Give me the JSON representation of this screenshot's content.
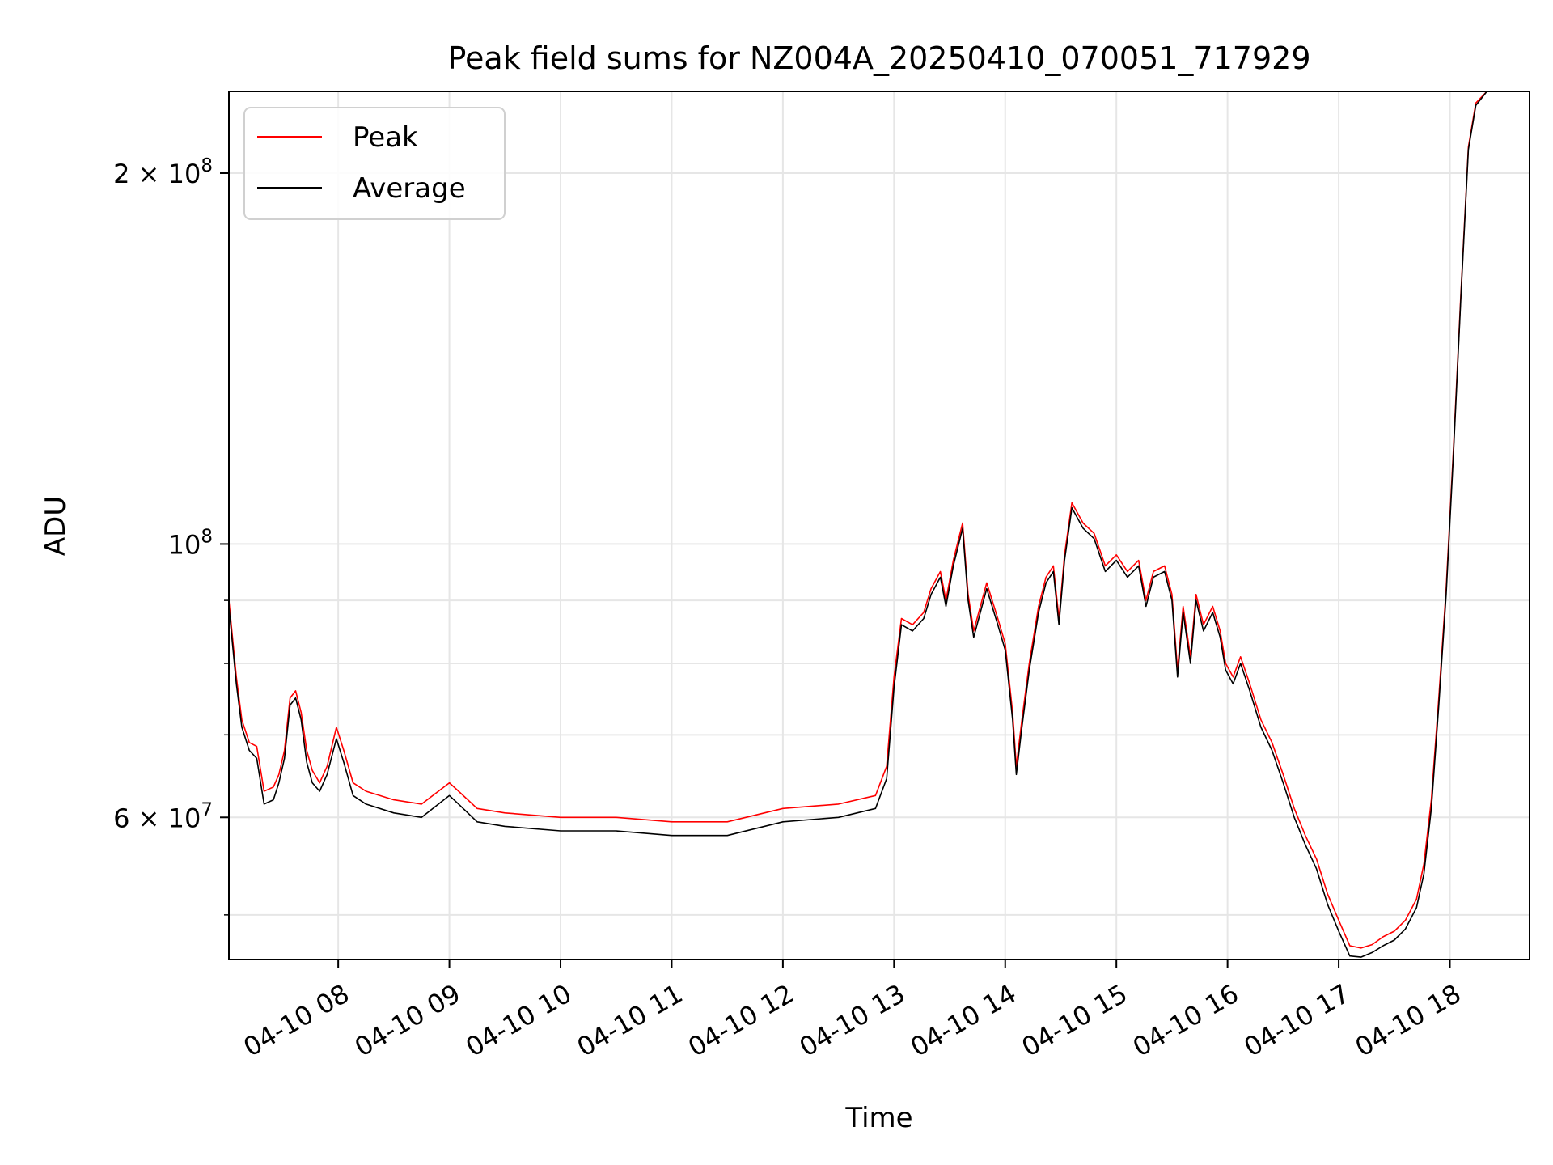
{
  "chart_data": {
    "type": "line",
    "title": "Peak field sums for NZ004A_20250410_070051_717929",
    "xlabel": "Time",
    "ylabel": "ADU",
    "y_scale": "log",
    "xlim": [
      "2025-04-10 07:01",
      "2025-04-10 18:43"
    ],
    "ylim": [
      46000000,
      233000000
    ],
    "grid": true,
    "legend_position": "upper-left",
    "x_ticks": [
      {
        "value": "2025-04-10 08:00",
        "label": "04-10 08"
      },
      {
        "value": "2025-04-10 09:00",
        "label": "04-10 09"
      },
      {
        "value": "2025-04-10 10:00",
        "label": "04-10 10"
      },
      {
        "value": "2025-04-10 11:00",
        "label": "04-10 11"
      },
      {
        "value": "2025-04-10 12:00",
        "label": "04-10 12"
      },
      {
        "value": "2025-04-10 13:00",
        "label": "04-10 13"
      },
      {
        "value": "2025-04-10 14:00",
        "label": "04-10 14"
      },
      {
        "value": "2025-04-10 15:00",
        "label": "04-10 15"
      },
      {
        "value": "2025-04-10 16:00",
        "label": "04-10 16"
      },
      {
        "value": "2025-04-10 17:00",
        "label": "04-10 17"
      },
      {
        "value": "2025-04-10 18:00",
        "label": "04-10 18"
      }
    ],
    "y_ticks": [
      {
        "value": 200000000,
        "label_base": "2 × 10",
        "label_exp": "8"
      },
      {
        "value": 100000000,
        "label_base": "10",
        "label_exp": "8"
      },
      {
        "value": 60000000,
        "label_base": "6 × 10",
        "label_exp": "7"
      }
    ],
    "y_minor_gridlines": [
      50000000,
      70000000,
      80000000,
      90000000
    ],
    "series": [
      {
        "name": "Peak",
        "color": "#ff0000",
        "points": [
          [
            "2025-04-10 07:01",
            90000000
          ],
          [
            "2025-04-10 07:05",
            78000000
          ],
          [
            "2025-04-10 07:08",
            72000000
          ],
          [
            "2025-04-10 07:12",
            69000000
          ],
          [
            "2025-04-10 07:16",
            68500000
          ],
          [
            "2025-04-10 07:20",
            63000000
          ],
          [
            "2025-04-10 07:25",
            63500000
          ],
          [
            "2025-04-10 07:28",
            65000000
          ],
          [
            "2025-04-10 07:31",
            68000000
          ],
          [
            "2025-04-10 07:34",
            75000000
          ],
          [
            "2025-04-10 07:37",
            76000000
          ],
          [
            "2025-04-10 07:40",
            73000000
          ],
          [
            "2025-04-10 07:43",
            68000000
          ],
          [
            "2025-04-10 07:46",
            65500000
          ],
          [
            "2025-04-10 07:50",
            64000000
          ],
          [
            "2025-04-10 07:54",
            66000000
          ],
          [
            "2025-04-10 07:59",
            71000000
          ],
          [
            "2025-04-10 08:03",
            68000000
          ],
          [
            "2025-04-10 08:08",
            64000000
          ],
          [
            "2025-04-10 08:15",
            63000000
          ],
          [
            "2025-04-10 08:30",
            62000000
          ],
          [
            "2025-04-10 08:45",
            61500000
          ],
          [
            "2025-04-10 09:00",
            64000000
          ],
          [
            "2025-04-10 09:05",
            63000000
          ],
          [
            "2025-04-10 09:15",
            61000000
          ],
          [
            "2025-04-10 09:30",
            60500000
          ],
          [
            "2025-04-10 10:00",
            60000000
          ],
          [
            "2025-04-10 10:30",
            60000000
          ],
          [
            "2025-04-10 11:00",
            59500000
          ],
          [
            "2025-04-10 11:30",
            59500000
          ],
          [
            "2025-04-10 12:00",
            61000000
          ],
          [
            "2025-04-10 12:30",
            61500000
          ],
          [
            "2025-04-10 12:50",
            62500000
          ],
          [
            "2025-04-10 12:56",
            66000000
          ],
          [
            "2025-04-10 13:00",
            78000000
          ],
          [
            "2025-04-10 13:04",
            87000000
          ],
          [
            "2025-04-10 13:10",
            86000000
          ],
          [
            "2025-04-10 13:16",
            88000000
          ],
          [
            "2025-04-10 13:20",
            92000000
          ],
          [
            "2025-04-10 13:25",
            95000000
          ],
          [
            "2025-04-10 13:28",
            90000000
          ],
          [
            "2025-04-10 13:32",
            97000000
          ],
          [
            "2025-04-10 13:37",
            104000000
          ],
          [
            "2025-04-10 13:40",
            91000000
          ],
          [
            "2025-04-10 13:43",
            85000000
          ],
          [
            "2025-04-10 13:50",
            93000000
          ],
          [
            "2025-04-10 13:56",
            87000000
          ],
          [
            "2025-04-10 14:00",
            83000000
          ],
          [
            "2025-04-10 14:04",
            73000000
          ],
          [
            "2025-04-10 14:06",
            66000000
          ],
          [
            "2025-04-10 14:09",
            72000000
          ],
          [
            "2025-04-10 14:13",
            80000000
          ],
          [
            "2025-04-10 14:18",
            89000000
          ],
          [
            "2025-04-10 14:22",
            94000000
          ],
          [
            "2025-04-10 14:26",
            96000000
          ],
          [
            "2025-04-10 14:29",
            87000000
          ],
          [
            "2025-04-10 14:32",
            98000000
          ],
          [
            "2025-04-10 14:36",
            108000000
          ],
          [
            "2025-04-10 14:42",
            104000000
          ],
          [
            "2025-04-10 14:48",
            102000000
          ],
          [
            "2025-04-10 14:54",
            96000000
          ],
          [
            "2025-04-10 15:00",
            98000000
          ],
          [
            "2025-04-10 15:06",
            95000000
          ],
          [
            "2025-04-10 15:12",
            97000000
          ],
          [
            "2025-04-10 15:16",
            90000000
          ],
          [
            "2025-04-10 15:20",
            95000000
          ],
          [
            "2025-04-10 15:26",
            96000000
          ],
          [
            "2025-04-10 15:30",
            91000000
          ],
          [
            "2025-04-10 15:33",
            79000000
          ],
          [
            "2025-04-10 15:36",
            89000000
          ],
          [
            "2025-04-10 15:40",
            81000000
          ],
          [
            "2025-04-10 15:43",
            91000000
          ],
          [
            "2025-04-10 15:47",
            86000000
          ],
          [
            "2025-04-10 15:52",
            89000000
          ],
          [
            "2025-04-10 15:56",
            85000000
          ],
          [
            "2025-04-10 15:59",
            80000000
          ],
          [
            "2025-04-10 16:03",
            78000000
          ],
          [
            "2025-04-10 16:07",
            81000000
          ],
          [
            "2025-04-10 16:12",
            77000000
          ],
          [
            "2025-04-10 16:18",
            72000000
          ],
          [
            "2025-04-10 16:24",
            69000000
          ],
          [
            "2025-04-10 16:30",
            65000000
          ],
          [
            "2025-04-10 16:36",
            61000000
          ],
          [
            "2025-04-10 16:42",
            58000000
          ],
          [
            "2025-04-10 16:48",
            55500000
          ],
          [
            "2025-04-10 16:54",
            52000000
          ],
          [
            "2025-04-10 17:00",
            49500000
          ],
          [
            "2025-04-10 17:06",
            47200000
          ],
          [
            "2025-04-10 17:12",
            47000000
          ],
          [
            "2025-04-10 17:18",
            47300000
          ],
          [
            "2025-04-10 17:24",
            48000000
          ],
          [
            "2025-04-10 17:30",
            48500000
          ],
          [
            "2025-04-10 17:36",
            49500000
          ],
          [
            "2025-04-10 17:42",
            51500000
          ],
          [
            "2025-04-10 17:46",
            55000000
          ],
          [
            "2025-04-10 17:50",
            62000000
          ],
          [
            "2025-04-10 17:54",
            75000000
          ],
          [
            "2025-04-10 17:58",
            92000000
          ],
          [
            "2025-04-10 18:02",
            120000000
          ],
          [
            "2025-04-10 18:06",
            160000000
          ],
          [
            "2025-04-10 18:10",
            210000000
          ],
          [
            "2025-04-10 18:14",
            228000000
          ],
          [
            "2025-04-10 18:20",
            233000000
          ]
        ]
      },
      {
        "name": "Average",
        "color": "#000000",
        "points": [
          [
            "2025-04-10 07:01",
            89000000
          ],
          [
            "2025-04-10 07:05",
            77000000
          ],
          [
            "2025-04-10 07:08",
            71000000
          ],
          [
            "2025-04-10 07:12",
            68000000
          ],
          [
            "2025-04-10 07:16",
            67000000
          ],
          [
            "2025-04-10 07:20",
            61500000
          ],
          [
            "2025-04-10 07:25",
            62000000
          ],
          [
            "2025-04-10 07:28",
            64000000
          ],
          [
            "2025-04-10 07:31",
            67000000
          ],
          [
            "2025-04-10 07:34",
            74000000
          ],
          [
            "2025-04-10 07:37",
            75000000
          ],
          [
            "2025-04-10 07:40",
            72000000
          ],
          [
            "2025-04-10 07:43",
            66500000
          ],
          [
            "2025-04-10 07:46",
            64000000
          ],
          [
            "2025-04-10 07:50",
            63000000
          ],
          [
            "2025-04-10 07:54",
            65000000
          ],
          [
            "2025-04-10 07:59",
            69500000
          ],
          [
            "2025-04-10 08:03",
            66500000
          ],
          [
            "2025-04-10 08:08",
            62500000
          ],
          [
            "2025-04-10 08:15",
            61500000
          ],
          [
            "2025-04-10 08:30",
            60500000
          ],
          [
            "2025-04-10 08:45",
            60000000
          ],
          [
            "2025-04-10 09:00",
            62500000
          ],
          [
            "2025-04-10 09:05",
            61500000
          ],
          [
            "2025-04-10 09:15",
            59500000
          ],
          [
            "2025-04-10 09:30",
            59000000
          ],
          [
            "2025-04-10 10:00",
            58500000
          ],
          [
            "2025-04-10 10:30",
            58500000
          ],
          [
            "2025-04-10 11:00",
            58000000
          ],
          [
            "2025-04-10 11:30",
            58000000
          ],
          [
            "2025-04-10 12:00",
            59500000
          ],
          [
            "2025-04-10 12:30",
            60000000
          ],
          [
            "2025-04-10 12:50",
            61000000
          ],
          [
            "2025-04-10 12:56",
            64500000
          ],
          [
            "2025-04-10 13:00",
            76500000
          ],
          [
            "2025-04-10 13:04",
            86000000
          ],
          [
            "2025-04-10 13:10",
            85000000
          ],
          [
            "2025-04-10 13:16",
            87000000
          ],
          [
            "2025-04-10 13:20",
            91000000
          ],
          [
            "2025-04-10 13:25",
            94000000
          ],
          [
            "2025-04-10 13:28",
            89000000
          ],
          [
            "2025-04-10 13:32",
            96000000
          ],
          [
            "2025-04-10 13:37",
            103000000
          ],
          [
            "2025-04-10 13:40",
            90000000
          ],
          [
            "2025-04-10 13:43",
            84000000
          ],
          [
            "2025-04-10 13:50",
            92000000
          ],
          [
            "2025-04-10 13:56",
            86000000
          ],
          [
            "2025-04-10 14:00",
            82000000
          ],
          [
            "2025-04-10 14:04",
            72000000
          ],
          [
            "2025-04-10 14:06",
            65000000
          ],
          [
            "2025-04-10 14:09",
            71000000
          ],
          [
            "2025-04-10 14:13",
            79000000
          ],
          [
            "2025-04-10 14:18",
            88000000
          ],
          [
            "2025-04-10 14:22",
            93000000
          ],
          [
            "2025-04-10 14:26",
            95000000
          ],
          [
            "2025-04-10 14:29",
            86000000
          ],
          [
            "2025-04-10 14:32",
            97000000
          ],
          [
            "2025-04-10 14:36",
            107000000
          ],
          [
            "2025-04-10 14:42",
            103000000
          ],
          [
            "2025-04-10 14:48",
            101000000
          ],
          [
            "2025-04-10 14:54",
            95000000
          ],
          [
            "2025-04-10 15:00",
            97000000
          ],
          [
            "2025-04-10 15:06",
            94000000
          ],
          [
            "2025-04-10 15:12",
            96000000
          ],
          [
            "2025-04-10 15:16",
            89000000
          ],
          [
            "2025-04-10 15:20",
            94000000
          ],
          [
            "2025-04-10 15:26",
            95000000
          ],
          [
            "2025-04-10 15:30",
            90000000
          ],
          [
            "2025-04-10 15:33",
            78000000
          ],
          [
            "2025-04-10 15:36",
            88000000
          ],
          [
            "2025-04-10 15:40",
            80000000
          ],
          [
            "2025-04-10 15:43",
            90000000
          ],
          [
            "2025-04-10 15:47",
            85000000
          ],
          [
            "2025-04-10 15:52",
            88000000
          ],
          [
            "2025-04-10 15:56",
            84000000
          ],
          [
            "2025-04-10 15:59",
            79000000
          ],
          [
            "2025-04-10 16:03",
            77000000
          ],
          [
            "2025-04-10 16:07",
            80000000
          ],
          [
            "2025-04-10 16:12",
            76000000
          ],
          [
            "2025-04-10 16:18",
            71000000
          ],
          [
            "2025-04-10 16:24",
            68000000
          ],
          [
            "2025-04-10 16:30",
            64000000
          ],
          [
            "2025-04-10 16:36",
            60000000
          ],
          [
            "2025-04-10 16:42",
            57000000
          ],
          [
            "2025-04-10 16:48",
            54500000
          ],
          [
            "2025-04-10 16:54",
            51000000
          ],
          [
            "2025-04-10 17:00",
            48500000
          ],
          [
            "2025-04-10 17:06",
            46300000
          ],
          [
            "2025-04-10 17:12",
            46200000
          ],
          [
            "2025-04-10 17:18",
            46600000
          ],
          [
            "2025-04-10 17:24",
            47200000
          ],
          [
            "2025-04-10 17:30",
            47700000
          ],
          [
            "2025-04-10 17:36",
            48700000
          ],
          [
            "2025-04-10 17:42",
            50700000
          ],
          [
            "2025-04-10 17:46",
            54000000
          ],
          [
            "2025-04-10 17:50",
            61000000
          ],
          [
            "2025-04-10 17:54",
            74000000
          ],
          [
            "2025-04-10 17:58",
            91000000
          ],
          [
            "2025-04-10 18:02",
            119000000
          ],
          [
            "2025-04-10 18:06",
            159000000
          ],
          [
            "2025-04-10 18:10",
            209000000
          ],
          [
            "2025-04-10 18:14",
            227000000
          ],
          [
            "2025-04-10 18:20",
            233000000
          ]
        ]
      }
    ]
  }
}
